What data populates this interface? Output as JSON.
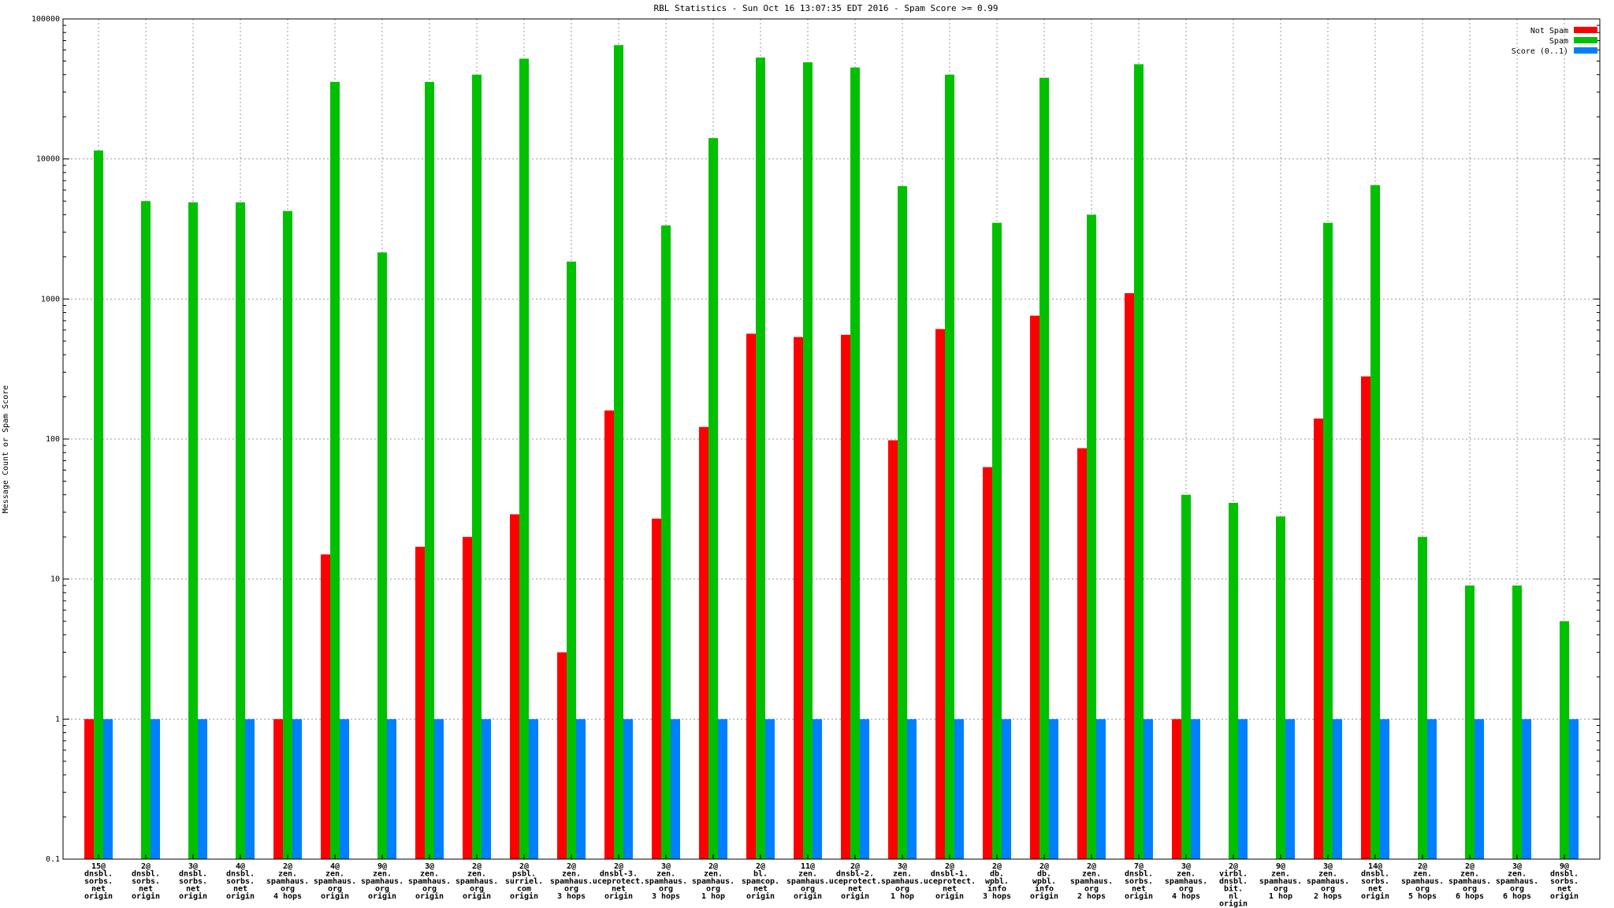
{
  "chart_data": {
    "type": "bar",
    "title": "RBL Statistics - Sun Oct 16 13:07:35 EDT 2016 - Spam Score >= 0.99",
    "xlabel": "",
    "ylabel": "Message Count or Spam Score",
    "yscale": "log",
    "ylim": [
      0.1,
      100000
    ],
    "yticks": [
      "0.1",
      "1",
      "10",
      "100",
      "1000",
      "10000",
      "100000"
    ],
    "grid": true,
    "legend_position": "top-right",
    "categories": [
      "15@\ndnsbl.\nsorbs.\nnet\norigin",
      "2@\ndnsbl.\nsorbs.\nnet\norigin",
      "3@\ndnsbl.\nsorbs.\nnet\norigin",
      "4@\ndnsbl.\nsorbs.\nnet\norigin",
      "2@\nzen.\nspamhaus.\norg\n4 hops",
      "4@\nzen.\nspamhaus.\norg\norigin",
      "9@\nzen.\nspamhaus.\norg\norigin",
      "3@\nzen.\nspamhaus.\norg\norigin",
      "2@\nzen.\nspamhaus.\norg\norigin",
      "2@\npsbl.\nsurriel.\ncom\norigin",
      "2@\nzen.\nspamhaus.\norg\n3 hops",
      "2@\ndnsbl-3.\nuceprotect.\nnet\norigin",
      "3@\nzen.\nspamhaus.\norg\n3 hops",
      "2@\nzen.\nspamhaus.\norg\n1 hop",
      "2@\nbl.\nspamcop.\nnet\norigin",
      "11@\nzen.\nspamhaus.\norg\norigin",
      "2@\ndnsbl-2.\nuceprotect.\nnet\norigin",
      "3@\nzen.\nspamhaus.\norg\n1 hop",
      "2@\ndnsbl-1.\nuceprotect.\nnet\norigin",
      "2@\ndb.\nwpbl.\ninfo\n3 hops",
      "2@\ndb.\nwpbl.\ninfo\norigin",
      "2@\nzen.\nspamhaus.\norg\n2 hops",
      "7@\ndnsbl.\nsorbs.\nnet\norigin",
      "3@\nzen.\nspamhaus.\norg\n4 hops",
      "2@\nvirbl.\ndnsbl.\nbit.\nnl\norigin",
      "9@\nzen.\nspamhaus.\norg\n1 hop",
      "3@\nzen.\nspamhaus.\norg\n2 hops",
      "14@\ndnsbl.\nsorbs.\nnet\norigin",
      "2@\nzen.\nspamhaus.\norg\n5 hops",
      "2@\nzen.\nspamhaus.\norg\n6 hops",
      "3@\nzen.\nspamhaus.\norg\n6 hops",
      "9@\ndnsbl.\nsorbs.\nnet\norigin"
    ],
    "series": [
      {
        "name": "Not Spam",
        "color": "#ff0000",
        "values": [
          1,
          null,
          null,
          null,
          1,
          15,
          null,
          17,
          20,
          29,
          3,
          160,
          27,
          122,
          565,
          535,
          555,
          98,
          610,
          63,
          760,
          86,
          1100,
          1,
          null,
          null,
          140,
          280,
          null,
          null,
          null,
          null
        ]
      },
      {
        "name": "Spam",
        "color": "#00c000",
        "values": [
          11500,
          5000,
          4900,
          4900,
          4250,
          35500,
          2150,
          35500,
          40000,
          52000,
          1850,
          65000,
          3350,
          14100,
          53000,
          49000,
          45000,
          6400,
          40000,
          3500,
          38000,
          4000,
          47500,
          40,
          35,
          28,
          3500,
          6500,
          20,
          9,
          9,
          5
        ]
      },
      {
        "name": "Score (0..1)",
        "color": "#0080ff",
        "values": [
          1,
          1,
          1,
          1,
          1,
          1,
          1,
          1,
          1,
          1,
          1,
          1,
          1,
          1,
          1,
          1,
          1,
          1,
          1,
          1,
          1,
          1,
          1,
          1,
          1,
          1,
          1,
          1,
          1,
          1,
          1,
          1
        ]
      }
    ]
  }
}
